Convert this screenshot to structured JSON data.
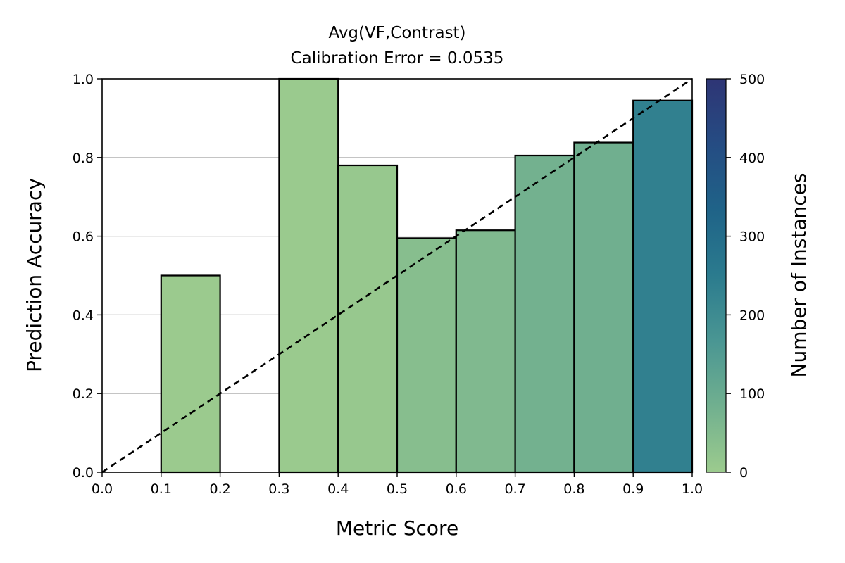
{
  "chart_data": {
    "type": "bar",
    "title": "Avg(VF,Contrast)",
    "subtitle": "Calibration Error = 0.0535",
    "xlabel": "Metric Score",
    "ylabel": "Prediction Accuracy",
    "xlim": [
      0.0,
      1.0
    ],
    "ylim": [
      0.0,
      1.0
    ],
    "x_ticks": [
      "0.0",
      "0.1",
      "0.2",
      "0.3",
      "0.4",
      "0.5",
      "0.6",
      "0.7",
      "0.8",
      "0.9",
      "1.0"
    ],
    "y_ticks": [
      "0.0",
      "0.2",
      "0.4",
      "0.6",
      "0.8",
      "1.0"
    ],
    "grid": "horizontal",
    "bins": [
      {
        "x0": 0.1,
        "x1": 0.2,
        "accuracy": 0.5,
        "instances": 2
      },
      {
        "x0": 0.3,
        "x1": 0.4,
        "accuracy": 1.0,
        "instances": 3
      },
      {
        "x0": 0.4,
        "x1": 0.5,
        "accuracy": 0.78,
        "instances": 9
      },
      {
        "x0": 0.5,
        "x1": 0.6,
        "accuracy": 0.595,
        "instances": 40
      },
      {
        "x0": 0.6,
        "x1": 0.7,
        "accuracy": 0.615,
        "instances": 55
      },
      {
        "x0": 0.7,
        "x1": 0.8,
        "accuracy": 0.805,
        "instances": 80
      },
      {
        "x0": 0.8,
        "x1": 0.9,
        "accuracy": 0.838,
        "instances": 85
      },
      {
        "x0": 0.9,
        "x1": 1.0,
        "accuracy": 0.945,
        "instances": 235
      }
    ],
    "reference_line": {
      "style": "dashed",
      "from": [
        0,
        0
      ],
      "to": [
        1,
        1
      ]
    },
    "colorbar": {
      "label": "Number of Instances",
      "range": [
        0,
        500
      ],
      "ticks": [
        "0",
        "100",
        "200",
        "300",
        "400",
        "500"
      ],
      "colors": [
        "#9ccb8e",
        "#71b08f",
        "#4a9693",
        "#2b7b8e",
        "#1f6388",
        "#254c83",
        "#2e3575"
      ]
    }
  }
}
